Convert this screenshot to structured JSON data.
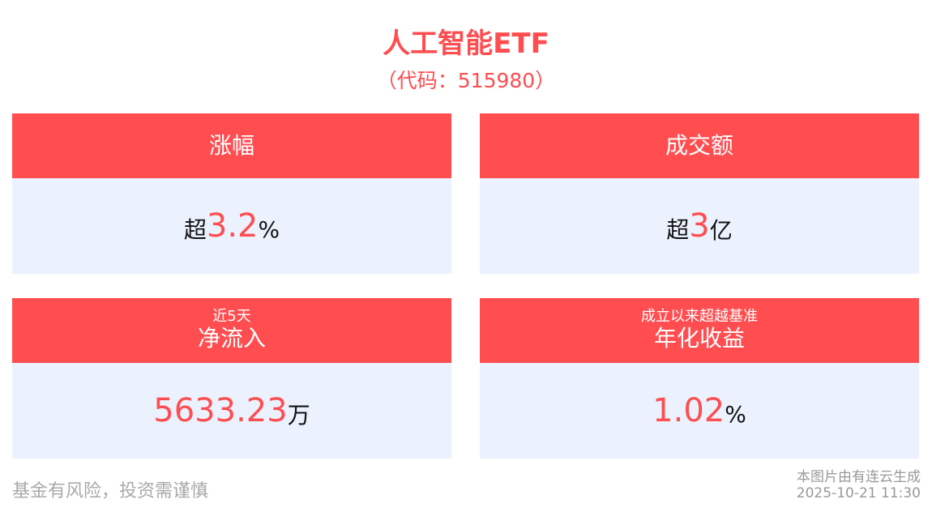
{
  "header": {
    "title": "人工智能ETF",
    "code": "（代码：515980）"
  },
  "cards": [
    {
      "subtitle": "",
      "title": "涨幅",
      "prefix": "超",
      "value": "3.2",
      "unit": "%"
    },
    {
      "subtitle": "",
      "title": "成交额",
      "prefix": "超",
      "value": "3",
      "unit": "亿"
    },
    {
      "subtitle": "近5天",
      "title": "净流入",
      "prefix": "",
      "value": "5633.23",
      "unit": "万"
    },
    {
      "subtitle": "成立以来超越基准",
      "title": "年化收益",
      "prefix": "",
      "value": "1.02",
      "unit": "%"
    }
  ],
  "footer": {
    "risk": "基金有风险，投资需谨慎",
    "generated_by": "本图片由有连云生成",
    "timestamp": "2025-10-21 11:30"
  },
  "colors": {
    "accent": "#ff4d50",
    "card_body": "#ebf2fe"
  }
}
